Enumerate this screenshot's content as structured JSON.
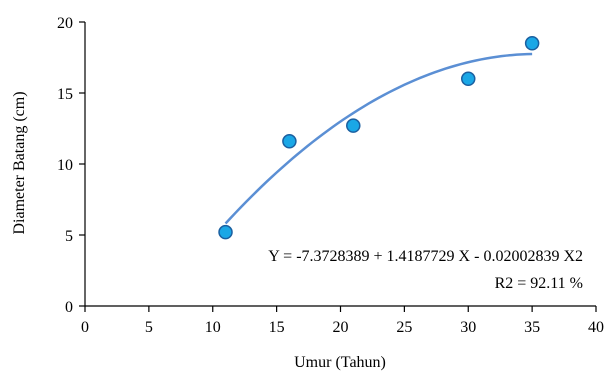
{
  "chart_data": {
    "type": "scatter",
    "xlabel": "Umur (Tahun)",
    "ylabel": "Diameter  Batang (cm)",
    "xlim": [
      0,
      40
    ],
    "ylim": [
      0,
      20
    ],
    "xticks": [
      0,
      5,
      10,
      15,
      20,
      25,
      30,
      35,
      40
    ],
    "yticks": [
      0,
      5,
      10,
      15,
      20
    ],
    "grid": false,
    "points": [
      {
        "x": 11,
        "y": 5.2
      },
      {
        "x": 16,
        "y": 11.6
      },
      {
        "x": 21,
        "y": 12.7
      },
      {
        "x": 30,
        "y": 16.0
      },
      {
        "x": 35,
        "y": 18.5
      }
    ],
    "trendline": {
      "type": "polynomial",
      "coefficients": [
        -7.3728389,
        1.4187729,
        -0.02002839
      ],
      "x_range": [
        11,
        35
      ]
    },
    "annotations": {
      "equation": "Y  = -7.3728389 + 1.4187729 X  - 0.02002839 X2",
      "r2": "R2 = 92.11 %"
    },
    "colors": {
      "marker_fill": "#1aa7e6",
      "marker_stroke": "#1a5fa0",
      "trendline": "#5b8fd4",
      "axis": "#000000"
    }
  }
}
